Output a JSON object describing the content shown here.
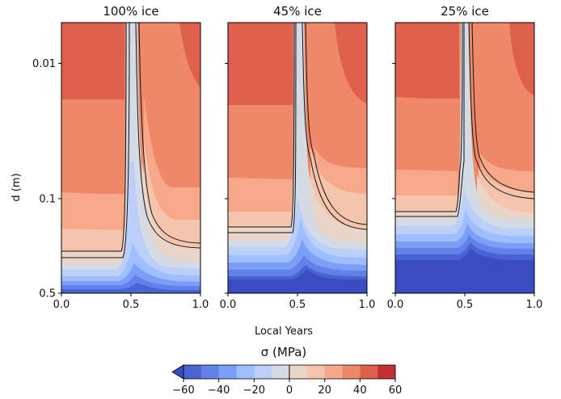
{
  "chart_data": {
    "type": "heatmap",
    "xlabel": "Local Years",
    "ylabel": "d (m)",
    "xlim": [
      0.0,
      1.0
    ],
    "ylim": [
      0.5,
      0.005
    ],
    "y_scale": "log",
    "x_ticks": [
      "0.0",
      "0.5",
      "1.0"
    ],
    "y_ticks": [
      {
        "value": 0.01,
        "label": "0.01"
      },
      {
        "value": 0.1,
        "label": "0.1"
      },
      {
        "value": 0.5,
        "label": "0.5"
      }
    ],
    "panels": [
      {
        "title": "100% ice",
        "shows_y_labels": true
      },
      {
        "title": "45% ice",
        "shows_y_labels": false
      },
      {
        "title": "25% ice",
        "shows_y_labels": false
      }
    ],
    "colorbar": {
      "label": "σ (MPa)",
      "levels": [
        -60,
        -50,
        -40,
        -30,
        -20,
        -10,
        0,
        10,
        20,
        30,
        40,
        50,
        60
      ],
      "tick_labels": [
        "−60",
        "−40",
        "−20",
        "0",
        "20",
        "40",
        "60"
      ],
      "tick_values": [
        -60,
        -40,
        -20,
        0,
        20,
        40,
        60
      ],
      "colors": [
        "#4a63d3",
        "#6282ea",
        "#7b9ff9",
        "#9ebeff",
        "#bad0f8",
        "#d5dbe5",
        "#ead5c9",
        "#f5c4ac",
        "#f7a889",
        "#ef8868",
        "#de604d",
        "#c43032"
      ],
      "extend": "min",
      "extend_color": "#3b4cc0"
    }
  }
}
